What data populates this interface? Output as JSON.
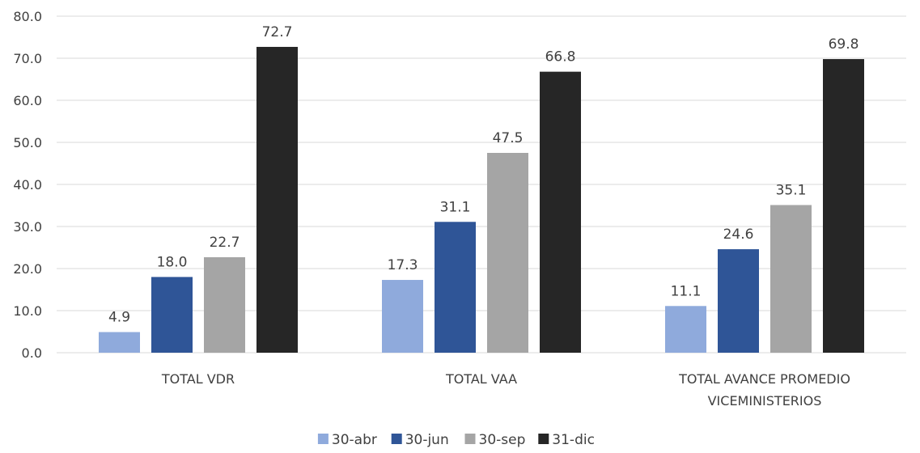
{
  "chart_data": {
    "type": "bar",
    "title": "",
    "xlabel": "",
    "ylabel": "",
    "ylim": [
      0,
      80
    ],
    "yticks": [
      "0.0",
      "10.0",
      "20.0",
      "30.0",
      "40.0",
      "50.0",
      "60.0",
      "70.0",
      "80.0"
    ],
    "grid": true,
    "legend_position": "bottom",
    "categories": [
      [
        "TOTAL  VDR"
      ],
      [
        "TOTAL VAA"
      ],
      [
        "TOTAL AVANCE PROMEDIO",
        "VICEMINISTERIOS"
      ]
    ],
    "series": [
      {
        "name": "30-abr",
        "color": "#8faadc",
        "values": [
          4.9,
          17.3,
          11.1
        ],
        "labels": [
          "4.9",
          "17.3",
          "11.1"
        ]
      },
      {
        "name": "30-jun",
        "color": "#2f5597",
        "values": [
          18.0,
          31.1,
          24.6
        ],
        "labels": [
          "18.0",
          "31.1",
          "24.6"
        ]
      },
      {
        "name": "30-sep",
        "color": "#a5a5a5",
        "values": [
          22.7,
          47.5,
          35.1
        ],
        "labels": [
          "22.7",
          "47.5",
          "35.1"
        ]
      },
      {
        "name": "31-dic",
        "color": "#262626",
        "values": [
          72.7,
          66.8,
          69.8
        ],
        "labels": [
          "72.7",
          "66.8",
          "69.8"
        ]
      }
    ]
  }
}
